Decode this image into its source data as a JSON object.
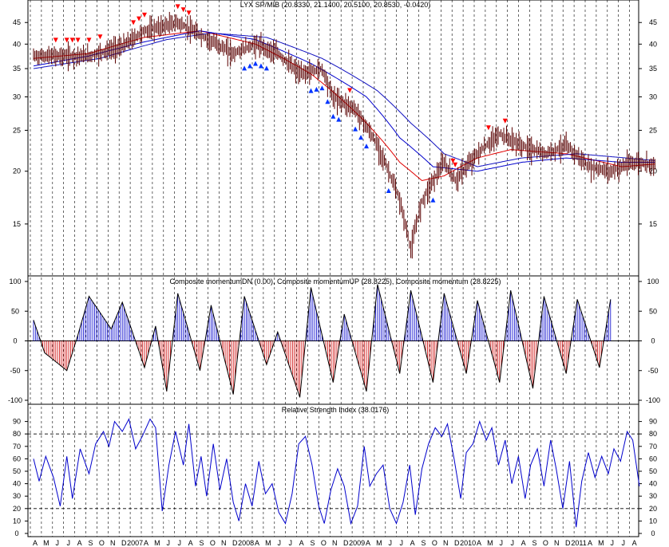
{
  "chart_data": [
    {
      "type": "candlestick",
      "title": "LYX SP/MIB (20.8330, 21.1400, 20.5100, 20.8530, -0.0420)",
      "scale": "log",
      "ylim": [
        11.5,
        50
      ],
      "y_ticks": [
        "45",
        "40",
        "35",
        "30",
        "25",
        "20",
        "15"
      ],
      "y_tick_values": [
        45,
        40,
        35,
        30,
        25,
        20,
        15
      ],
      "x_labels": [
        "A",
        "M",
        "J",
        "J",
        "A",
        "S",
        "O",
        "N",
        "D",
        "2007",
        "A",
        "M",
        "J",
        "J",
        "A",
        "S",
        "O",
        "N",
        "D",
        "2008",
        "A",
        "M",
        "J",
        "J",
        "A",
        "S",
        "O",
        "N",
        "D",
        "2009",
        "A",
        "M",
        "J",
        "J",
        "A",
        "S",
        "O",
        "N",
        "D",
        "2010",
        "A",
        "M",
        "J",
        "J",
        "A",
        "S",
        "O",
        "N",
        "D",
        "2011",
        "A",
        "M",
        "J",
        "J",
        "A"
      ],
      "price_anchors": [
        [
          0,
          37.5
        ],
        [
          5,
          37.5
        ],
        [
          8,
          39.5
        ],
        [
          10,
          43
        ],
        [
          13,
          45
        ],
        [
          15,
          42
        ],
        [
          18,
          38
        ],
        [
          20,
          40
        ],
        [
          22,
          38
        ],
        [
          24,
          34
        ],
        [
          26,
          35
        ],
        [
          27,
          30
        ],
        [
          29,
          28
        ],
        [
          31,
          23
        ],
        [
          33,
          17
        ],
        [
          34,
          13
        ],
        [
          35,
          17
        ],
        [
          37,
          21
        ],
        [
          38,
          19
        ],
        [
          40,
          22
        ],
        [
          42,
          24.5
        ],
        [
          44,
          23
        ],
        [
          46,
          22
        ],
        [
          48,
          23
        ],
        [
          50,
          20.5
        ],
        [
          52,
          20
        ],
        [
          54,
          21
        ],
        [
          56,
          20.8
        ]
      ],
      "series": [
        {
          "name": "red moving average",
          "color": "#e00000",
          "anchors": [
            [
              0,
              37
            ],
            [
              5,
              38
            ],
            [
              10,
              41.5
            ],
            [
              15,
              43
            ],
            [
              20,
              40
            ],
            [
              25,
              34
            ],
            [
              30,
              26
            ],
            [
              33,
              21
            ],
            [
              35,
              19
            ],
            [
              37,
              19.5
            ],
            [
              40,
              21.5
            ],
            [
              43,
              22.5
            ],
            [
              48,
              22
            ],
            [
              53,
              20.5
            ],
            [
              56,
              20.8
            ]
          ]
        },
        {
          "name": "blue moving average",
          "color": "#0000cc",
          "anchors": [
            [
              0,
              35.5
            ],
            [
              5,
              37.5
            ],
            [
              10,
              40.5
            ],
            [
              15,
              43
            ],
            [
              20,
              41
            ],
            [
              25,
              36
            ],
            [
              30,
              30
            ],
            [
              33,
              24
            ],
            [
              36,
              20.5
            ],
            [
              40,
              20
            ],
            [
              44,
              21
            ],
            [
              48,
              21.5
            ],
            [
              53,
              21
            ],
            [
              56,
              21
            ]
          ]
        },
        {
          "name": "blue long moving average",
          "color": "#1010c0",
          "anchors": [
            [
              0,
              35
            ],
            [
              6,
              37
            ],
            [
              12,
              41
            ],
            [
              16,
              42.5
            ],
            [
              21,
              41.5
            ],
            [
              26,
              37
            ],
            [
              31,
              31
            ],
            [
              34,
              26
            ],
            [
              37,
              22
            ],
            [
              40,
              20.5
            ],
            [
              44,
              21.5
            ],
            [
              49,
              22
            ],
            [
              56,
              21.2
            ]
          ]
        }
      ],
      "markers": {
        "red_down_arrows": [
          2,
          3,
          3.5,
          4,
          5,
          6,
          9,
          9.5,
          10,
          13,
          13.5,
          14,
          28.5,
          37.8,
          38,
          41,
          42.5
        ],
        "blue_up_arrows": [
          19,
          19.5,
          20,
          20.5,
          21,
          25,
          25.5,
          26,
          26.5,
          27,
          27.5,
          29,
          29.5,
          30,
          32,
          36
        ]
      }
    },
    {
      "type": "bar",
      "title": "Composite momentumDN (0.00), Composite momentumUP (28.8225), Composite momentum (28.8225)",
      "ylim": [
        -100,
        100
      ],
      "y_ticks": [
        "100",
        "50",
        "0",
        "-50",
        "-100"
      ],
      "y_tick_values": [
        100,
        50,
        0,
        -50,
        -100
      ],
      "series": [
        {
          "name": "Composite momentumUP",
          "color": "#0000cc"
        },
        {
          "name": "Composite momentumDN",
          "color": "#cc0000"
        }
      ],
      "peaks": [
        [
          0,
          35
        ],
        [
          1,
          -20
        ],
        [
          3,
          -50
        ],
        [
          4,
          10
        ],
        [
          5,
          75
        ],
        [
          7,
          20
        ],
        [
          8,
          65
        ],
        [
          10,
          -45
        ],
        [
          11,
          25
        ],
        [
          12,
          -85
        ],
        [
          13,
          80
        ],
        [
          15,
          -50
        ],
        [
          16,
          60
        ],
        [
          18,
          -90
        ],
        [
          19,
          75
        ],
        [
          21,
          -40
        ],
        [
          22,
          15
        ],
        [
          24,
          -95
        ],
        [
          25,
          90
        ],
        [
          27,
          -70
        ],
        [
          28,
          45
        ],
        [
          30,
          -85
        ],
        [
          31,
          95
        ],
        [
          33,
          -55
        ],
        [
          34,
          85
        ],
        [
          36,
          -70
        ],
        [
          37,
          80
        ],
        [
          39,
          -55
        ],
        [
          40,
          68
        ],
        [
          42,
          -70
        ],
        [
          43,
          85
        ],
        [
          45,
          -80
        ],
        [
          46,
          75
        ],
        [
          48,
          -55
        ],
        [
          49,
          70
        ],
        [
          51,
          -45
        ],
        [
          52,
          70
        ]
      ]
    },
    {
      "type": "line",
      "title": "Relative Strength Index (38.0176)",
      "ylim": [
        0,
        100
      ],
      "y_ticks": [
        "90",
        "80",
        "70",
        "60",
        "50",
        "40",
        "30",
        "20",
        "10",
        "0"
      ],
      "y_tick_values": [
        90,
        80,
        70,
        60,
        50,
        40,
        30,
        20,
        10,
        0
      ],
      "reference_lines": [
        80,
        20
      ],
      "series": [
        {
          "name": "RSI",
          "color": "#0000cc",
          "points": [
            [
              0,
              60
            ],
            [
              0.5,
              42
            ],
            [
              1.1,
              62
            ],
            [
              1.8,
              45
            ],
            [
              2.4,
              22
            ],
            [
              3,
              62
            ],
            [
              3.5,
              28
            ],
            [
              4.2,
              68
            ],
            [
              5,
              48
            ],
            [
              5.6,
              72
            ],
            [
              6.3,
              82
            ],
            [
              6.8,
              70
            ],
            [
              7.3,
              90
            ],
            [
              8,
              82
            ],
            [
              8.6,
              92
            ],
            [
              9.2,
              68
            ],
            [
              9.8,
              78
            ],
            [
              10.5,
              92
            ],
            [
              11,
              85
            ],
            [
              11.6,
              18
            ],
            [
              12.2,
              55
            ],
            [
              12.8,
              82
            ],
            [
              13.5,
              55
            ],
            [
              14,
              88
            ],
            [
              14.6,
              38
            ],
            [
              15.1,
              62
            ],
            [
              15.6,
              30
            ],
            [
              16.2,
              72
            ],
            [
              16.8,
              35
            ],
            [
              17.4,
              60
            ],
            [
              18,
              25
            ],
            [
              18.5,
              10
            ],
            [
              19.1,
              40
            ],
            [
              19.7,
              22
            ],
            [
              20.3,
              58
            ],
            [
              20.9,
              32
            ],
            [
              21.5,
              40
            ],
            [
              22.1,
              17
            ],
            [
              22.7,
              8
            ],
            [
              23.3,
              32
            ],
            [
              23.9,
              72
            ],
            [
              24.5,
              78
            ],
            [
              25.1,
              55
            ],
            [
              25.7,
              22
            ],
            [
              26.2,
              8
            ],
            [
              26.8,
              35
            ],
            [
              27.4,
              52
            ],
            [
              28,
              38
            ],
            [
              28.6,
              8
            ],
            [
              29.2,
              22
            ],
            [
              29.8,
              70
            ],
            [
              30.3,
              38
            ],
            [
              30.9,
              48
            ],
            [
              31.5,
              55
            ],
            [
              32.1,
              20
            ],
            [
              32.7,
              8
            ],
            [
              33.3,
              25
            ],
            [
              33.9,
              55
            ],
            [
              34.4,
              15
            ],
            [
              35,
              52
            ],
            [
              35.6,
              72
            ],
            [
              36.2,
              85
            ],
            [
              36.8,
              78
            ],
            [
              37.3,
              88
            ],
            [
              37.9,
              60
            ],
            [
              38.5,
              28
            ],
            [
              39,
              65
            ],
            [
              39.6,
              72
            ],
            [
              40.2,
              90
            ],
            [
              40.8,
              75
            ],
            [
              41.3,
              85
            ],
            [
              41.9,
              55
            ],
            [
              42.5,
              75
            ],
            [
              43.1,
              40
            ],
            [
              43.7,
              62
            ],
            [
              44.3,
              28
            ],
            [
              44.8,
              55
            ],
            [
              45.4,
              68
            ],
            [
              46,
              38
            ],
            [
              46.6,
              75
            ],
            [
              47.1,
              52
            ],
            [
              47.7,
              20
            ],
            [
              48.3,
              58
            ],
            [
              48.9,
              5
            ],
            [
              49.4,
              42
            ],
            [
              50,
              65
            ],
            [
              50.6,
              45
            ],
            [
              51.2,
              62
            ],
            [
              51.8,
              48
            ],
            [
              52.3,
              68
            ],
            [
              52.9,
              58
            ],
            [
              53.5,
              82
            ],
            [
              54,
              75
            ],
            [
              54.6,
              38
            ]
          ]
        }
      ]
    }
  ]
}
